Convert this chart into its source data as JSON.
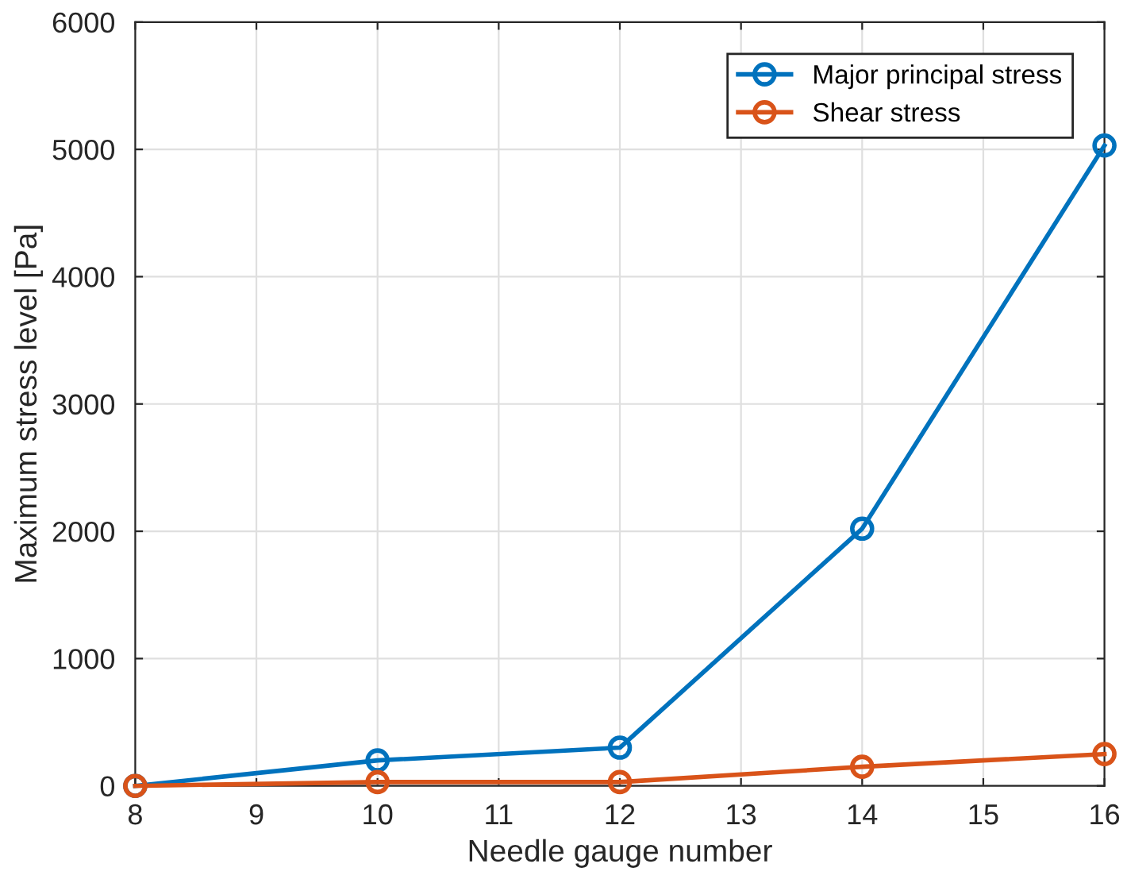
{
  "chart_data": {
    "type": "line",
    "xlabel": "Needle gauge number",
    "ylabel": "Maximum stress level [Pa]",
    "x": [
      8,
      10,
      12,
      14,
      16
    ],
    "series": [
      {
        "name": "Major principal stress",
        "color": "#0072bd",
        "values": [
          0,
          200,
          300,
          2020,
          5030
        ]
      },
      {
        "name": "Shear stress",
        "color": "#d95319",
        "values": [
          0,
          30,
          30,
          150,
          250
        ]
      }
    ],
    "xlim": [
      8,
      16
    ],
    "xticks": [
      8,
      9,
      10,
      11,
      12,
      13,
      14,
      15,
      16
    ],
    "ylim": [
      0,
      6000
    ],
    "yticks": [
      0,
      1000,
      2000,
      3000,
      4000,
      5000,
      6000
    ],
    "grid": true,
    "legend": "top right",
    "marker": "circle",
    "line_style": "solid"
  }
}
